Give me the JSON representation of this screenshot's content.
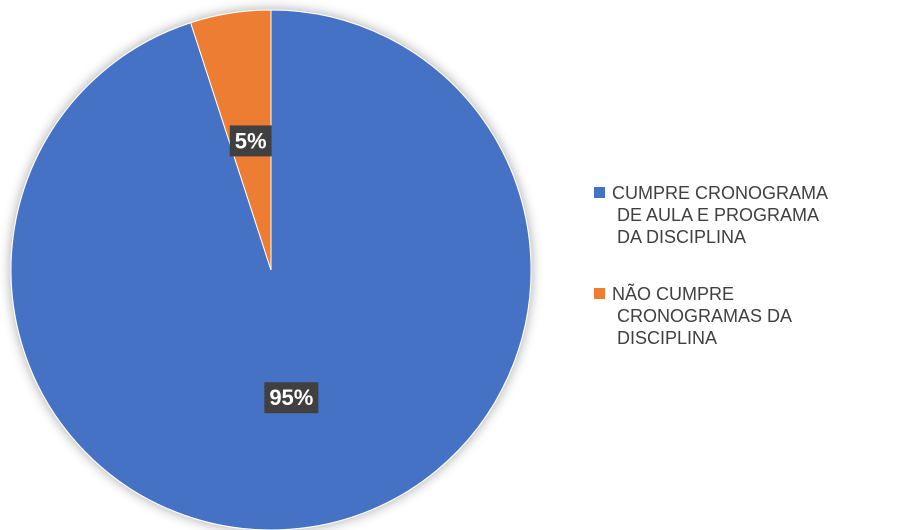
{
  "chart_data": {
    "type": "pie",
    "categories": [
      "CUMPRE CRONOGRAMA DE AULA E PROGRAMA DA DISCIPLINA",
      "NÃO CUMPRE CRONOGRAMAS DA DISCIPLINA"
    ],
    "values": [
      95,
      5
    ],
    "value_labels": [
      "95%",
      "5%"
    ],
    "colors": [
      "#4472c4",
      "#ed7d31"
    ],
    "legend": "right"
  }
}
